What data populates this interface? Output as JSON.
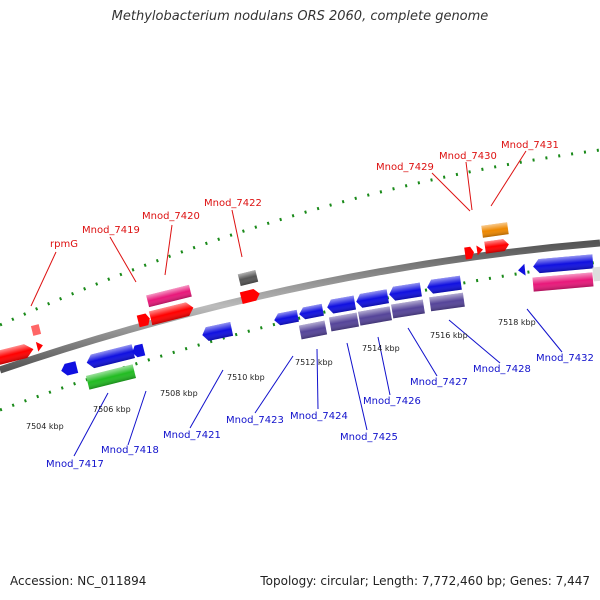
{
  "title": "Methylobacterium nodulans ORS 2060, complete genome",
  "colors": {
    "forward_label": "#dd1111",
    "reverse_label": "#1111cc",
    "backbone": "#888888",
    "grid": "#1a8a1a"
  },
  "footer": {
    "accession": "Accession: NC_011894",
    "summary": "Topology: circular; Length: 7,772,460 bp; Genes: 7,447"
  },
  "scale_labels": [
    "7504 kbp",
    "7506 kbp",
    "7508 kbp",
    "7510 kbp",
    "7512 kbp",
    "7514 kbp",
    "7516 kbp",
    "7518 kbp"
  ],
  "forward_genes": [
    {
      "label": "rpmG",
      "color": "#ff0000"
    },
    {
      "label": "Mnod_7419",
      "color": "#ff0000"
    },
    {
      "label": "Mnod_7420",
      "color": "#ff0000"
    },
    {
      "label": "Mnod_7422",
      "color": "#ff0000"
    },
    {
      "label": "Mnod_7429",
      "color": "#ff0000"
    },
    {
      "label": "Mnod_7430",
      "color": "#ff0000"
    },
    {
      "label": "Mnod_7431",
      "color": "#ff0000"
    }
  ],
  "reverse_genes": [
    {
      "label": "Mnod_7417",
      "color": "#1010e0"
    },
    {
      "label": "Mnod_7418",
      "color": "#1010e0"
    },
    {
      "label": "Mnod_7421",
      "color": "#1010e0"
    },
    {
      "label": "Mnod_7423",
      "color": "#1010e0"
    },
    {
      "label": "Mnod_7424",
      "color": "#1010e0"
    },
    {
      "label": "Mnod_7425",
      "color": "#1010e0"
    },
    {
      "label": "Mnod_7426",
      "color": "#1010e0"
    },
    {
      "label": "Mnod_7427",
      "color": "#1010e0"
    },
    {
      "label": "Mnod_7428",
      "color": "#1010e0"
    },
    {
      "label": "Mnod_7432",
      "color": "#1010e0"
    }
  ],
  "feature_colors": {
    "cds_forward": "#ff0000",
    "cds_reverse": "#1010e0",
    "rna_pink": "#e8187a",
    "cog_green": "#22bb22",
    "cog_purple": "#554499",
    "cog_orange": "#ee8800",
    "cog_gray": "#555555"
  }
}
